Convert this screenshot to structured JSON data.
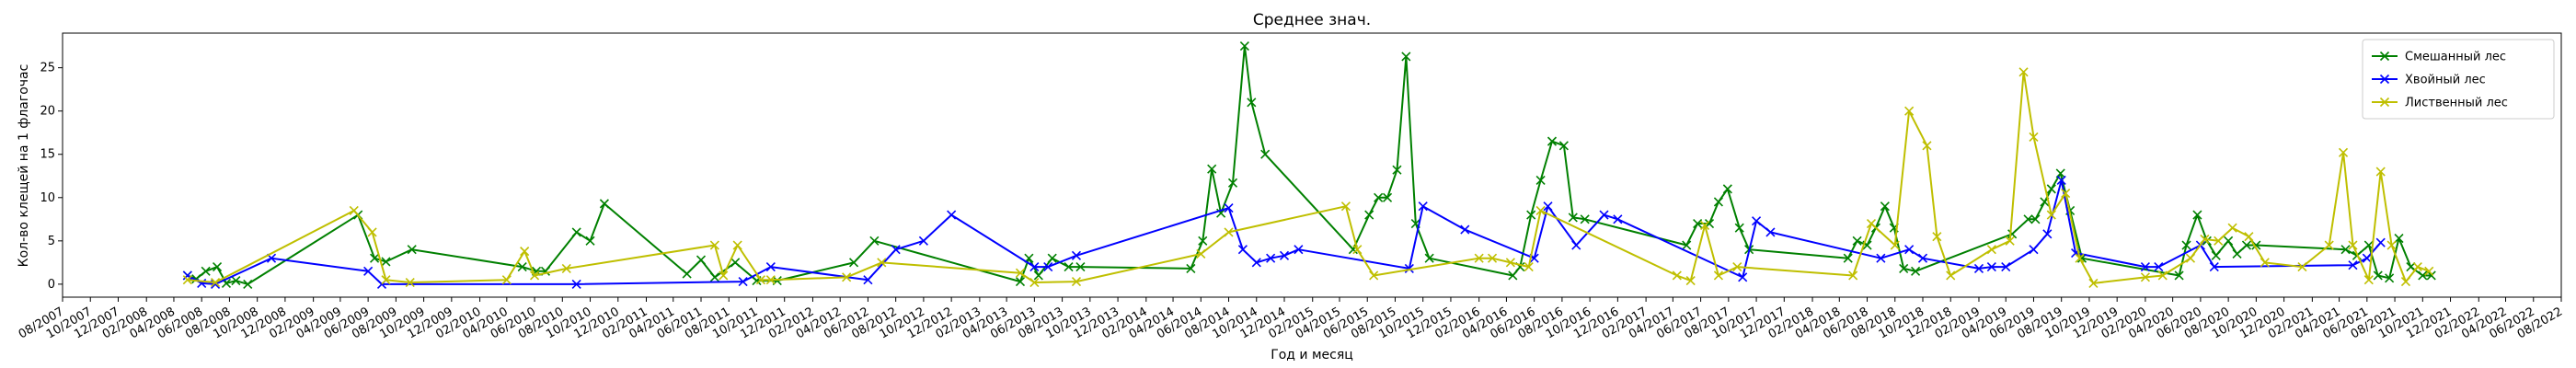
{
  "chart_data": {
    "type": "line",
    "title": "Среднее знач.",
    "xlabel": "Год и месяц",
    "ylabel": "Кол-во клещей на 1 флагочас",
    "xlim": [
      "2007-08-01",
      "2022-08-01"
    ],
    "ylim": [
      -1.5,
      29
    ],
    "yticks": [
      0,
      5,
      10,
      15,
      20,
      25
    ],
    "xticks": [
      "08/2007",
      "10/2007",
      "12/2007",
      "02/2008",
      "04/2008",
      "06/2008",
      "08/2008",
      "10/2008",
      "12/2008",
      "02/2009",
      "04/2009",
      "06/2009",
      "08/2009",
      "10/2009",
      "12/2009",
      "02/2010",
      "04/2010",
      "06/2010",
      "08/2010",
      "10/2010",
      "12/2010",
      "02/2011",
      "04/2011",
      "06/2011",
      "08/2011",
      "10/2011",
      "12/2011",
      "02/2012",
      "04/2012",
      "06/2012",
      "08/2012",
      "10/2012",
      "12/2012",
      "02/2013",
      "04/2013",
      "06/2013",
      "08/2013",
      "10/2013",
      "12/2013",
      "02/2014",
      "04/2014",
      "06/2014",
      "08/2014",
      "10/2014",
      "12/2014",
      "02/2015",
      "04/2015",
      "06/2015",
      "08/2015",
      "10/2015",
      "12/2015",
      "02/2016",
      "04/2016",
      "06/2016",
      "08/2016",
      "10/2016",
      "12/2016",
      "02/2017",
      "04/2017",
      "06/2017",
      "08/2017",
      "10/2017",
      "12/2017",
      "02/2018",
      "04/2018",
      "06/2018",
      "08/2018",
      "10/2018",
      "12/2018",
      "02/2019",
      "04/2019",
      "06/2019",
      "08/2019",
      "10/2019",
      "12/2019",
      "02/2020",
      "04/2020",
      "06/2020",
      "08/2020",
      "10/2020",
      "12/2020",
      "02/2021",
      "04/2021",
      "06/2021",
      "08/2021",
      "10/2021",
      "12/2021",
      "02/2022",
      "04/2022",
      "06/2022",
      "08/2022"
    ],
    "grid": false,
    "legend_position": "top-right",
    "series": [
      {
        "name": "Смешанный лес",
        "color": "#008000",
        "marker": "x",
        "x": [
          "2008-05-01",
          "2008-05-20",
          "2008-06-10",
          "2008-07-05",
          "2008-07-25",
          "2008-08-15",
          "2008-09-10",
          "2009-05-10",
          "2009-06-15",
          "2009-07-10",
          "2009-09-05",
          "2010-05-05",
          "2010-06-05",
          "2010-06-25",
          "2010-09-01",
          "2010-10-01",
          "2010-11-01",
          "2011-05-01",
          "2011-06-01",
          "2011-07-01",
          "2011-08-15",
          "2011-10-01",
          "2011-11-15",
          "2012-05-01",
          "2012-06-15",
          "2013-05-01",
          "2013-05-20",
          "2013-06-10",
          "2013-07-10",
          "2013-08-15",
          "2013-09-10",
          "2014-05-10",
          "2014-06-05",
          "2014-06-25",
          "2014-07-15",
          "2014-08-10",
          "2014-09-05",
          "2014-09-20",
          "2014-10-20",
          "2015-05-01",
          "2015-06-05",
          "2015-06-25",
          "2015-07-15",
          "2015-08-05",
          "2015-08-25",
          "2015-09-15",
          "2015-10-15",
          "2016-04-15",
          "2016-05-01",
          "2016-05-25",
          "2016-06-15",
          "2016-07-10",
          "2016-08-05",
          "2016-08-25",
          "2016-09-20",
          "2017-05-01",
          "2017-05-25",
          "2017-06-20",
          "2017-07-10",
          "2017-07-30",
          "2017-08-25",
          "2017-09-15",
          "2018-04-20",
          "2018-05-10",
          "2018-06-01",
          "2018-06-20",
          "2018-07-10",
          "2018-07-30",
          "2018-08-20",
          "2018-09-15",
          "2019-04-15",
          "2019-05-20",
          "2019-06-05",
          "2019-06-25",
          "2019-07-10",
          "2019-07-30",
          "2019-08-20",
          "2019-09-15",
          "2020-04-15",
          "2020-05-01",
          "2020-05-25",
          "2020-06-15",
          "2020-07-05",
          "2020-08-01",
          "2020-08-20",
          "2020-09-10",
          "2020-10-01",
          "2021-04-15",
          "2021-05-10",
          "2021-06-05",
          "2021-06-25",
          "2021-07-20",
          "2021-08-10",
          "2021-09-05",
          "2021-10-01",
          "2021-10-20"
        ],
        "y": [
          1.0,
          0.6,
          1.5,
          2.0,
          0.1,
          0.4,
          0.0,
          8.0,
          3.0,
          2.6,
          4.0,
          2.0,
          1.5,
          1.5,
          6.0,
          5.0,
          9.3,
          1.2,
          2.8,
          0.8,
          2.5,
          0.4,
          0.4,
          2.5,
          5.0,
          0.3,
          3.0,
          1.0,
          3.0,
          2.0,
          2.0,
          1.8,
          5.0,
          13.3,
          8.2,
          11.7,
          27.5,
          21.0,
          15.0,
          4.0,
          8.0,
          10.0,
          10.0,
          13.2,
          26.3,
          7.0,
          3.0,
          1.0,
          2.0,
          8.0,
          12.0,
          16.5,
          16.0,
          7.7,
          7.5,
          4.5,
          7.0,
          7.0,
          9.5,
          11.0,
          6.5,
          4.0,
          3.0,
          5.0,
          4.5,
          6.5,
          9.0,
          6.5,
          1.8,
          1.5,
          5.8,
          7.5,
          7.5,
          9.5,
          11.0,
          12.8,
          8.5,
          3.0,
          1.0,
          4.5,
          8.0,
          5.0,
          3.3,
          5.0,
          3.5,
          4.5,
          4.5,
          4.0,
          3.3,
          4.5,
          1.0,
          0.7,
          5.3,
          2.0,
          1.0,
          1.0
        ]
      },
      {
        "name": "Хвойный лес",
        "color": "#0000ff",
        "marker": "x",
        "x": [
          "2008-05-01",
          "2008-06-01",
          "2008-07-01",
          "2008-11-01",
          "2009-06-01",
          "2009-07-01",
          "2010-09-01",
          "2011-09-01",
          "2011-11-01",
          "2012-06-01",
          "2012-08-01",
          "2012-10-01",
          "2012-12-01",
          "2013-06-01",
          "2013-07-01",
          "2013-09-01",
          "2014-08-01",
          "2014-09-01",
          "2014-10-01",
          "2014-11-01",
          "2014-12-01",
          "2015-01-01",
          "2015-09-01",
          "2015-10-01",
          "2016-01-01",
          "2016-06-01",
          "2016-07-01",
          "2016-09-01",
          "2016-11-01",
          "2016-12-01",
          "2017-09-01",
          "2017-10-01",
          "2017-11-01",
          "2018-07-01",
          "2018-09-01",
          "2018-10-01",
          "2019-02-01",
          "2019-03-01",
          "2019-04-01",
          "2019-06-01",
          "2019-07-01",
          "2019-08-01",
          "2019-09-01",
          "2020-02-01",
          "2020-03-01",
          "2020-06-01",
          "2020-07-01",
          "2021-05-01",
          "2021-06-01",
          "2021-07-01"
        ],
        "y": [
          1.0,
          0.1,
          0.0,
          3.0,
          1.5,
          0.0,
          0.0,
          0.3,
          2.0,
          0.5,
          4.0,
          5.0,
          8.0,
          2.0,
          2.0,
          3.3,
          8.8,
          4.0,
          2.5,
          3.0,
          3.3,
          4.0,
          1.8,
          9.0,
          6.3,
          3.0,
          9.0,
          4.5,
          8.0,
          7.5,
          0.8,
          7.3,
          6.0,
          3.0,
          4.0,
          3.0,
          1.8,
          2.0,
          2.0,
          4.0,
          5.8,
          12.0,
          3.6,
          2.0,
          2.0,
          4.5,
          2.0,
          2.2,
          3.0,
          4.8
        ]
      },
      {
        "name": "Лиственный лес",
        "color": "#bfbf00",
        "marker": "x",
        "x": [
          "2008-05-01",
          "2008-07-01",
          "2009-05-01",
          "2009-06-10",
          "2009-07-10",
          "2009-09-01",
          "2010-04-01",
          "2010-05-10",
          "2010-06-01",
          "2010-08-10",
          "2011-07-01",
          "2011-07-20",
          "2011-08-20",
          "2011-10-10",
          "2011-11-01",
          "2012-04-15",
          "2012-07-01",
          "2013-05-01",
          "2013-06-01",
          "2013-09-01",
          "2014-06-01",
          "2014-08-01",
          "2015-04-15",
          "2015-05-10",
          "2015-06-15",
          "2016-02-01",
          "2016-03-01",
          "2016-04-10",
          "2016-05-20",
          "2016-06-15",
          "2017-04-10",
          "2017-05-10",
          "2017-06-10",
          "2017-07-10",
          "2017-08-20",
          "2018-05-01",
          "2018-06-10",
          "2018-08-01",
          "2018-09-01",
          "2018-10-10",
          "2018-11-01",
          "2018-12-01",
          "2019-03-01",
          "2019-04-10",
          "2019-05-10",
          "2019-06-01",
          "2019-07-10",
          "2019-08-10",
          "2019-09-10",
          "2019-10-10",
          "2020-02-01",
          "2020-03-10",
          "2020-05-10",
          "2020-06-10",
          "2020-07-10",
          "2020-08-10",
          "2020-09-15",
          "2020-10-20",
          "2021-01-10",
          "2021-03-10",
          "2021-04-10",
          "2021-05-01",
          "2021-06-05",
          "2021-07-01",
          "2021-07-25",
          "2021-08-25",
          "2021-09-20",
          "2021-10-15"
        ],
        "y": [
          0.5,
          0.2,
          8.5,
          6.0,
          0.5,
          0.2,
          0.5,
          3.8,
          1.0,
          1.8,
          4.5,
          1.0,
          4.5,
          0.5,
          0.5,
          0.8,
          2.5,
          1.3,
          0.2,
          0.3,
          3.5,
          6.0,
          9.0,
          4.0,
          1.0,
          3.0,
          3.0,
          2.5,
          2.0,
          8.5,
          1.0,
          0.4,
          6.8,
          1.0,
          2.0,
          1.0,
          7.0,
          4.5,
          20.0,
          16.0,
          5.5,
          1.0,
          4.0,
          5.0,
          24.5,
          17.0,
          8.0,
          10.5,
          3.0,
          0.1,
          0.8,
          1.0,
          3.0,
          5.2,
          5.0,
          6.5,
          5.5,
          2.5,
          2.0,
          4.5,
          15.2,
          4.5,
          0.5,
          13.0,
          4.5,
          0.3,
          2.0,
          1.5
        ]
      }
    ]
  }
}
